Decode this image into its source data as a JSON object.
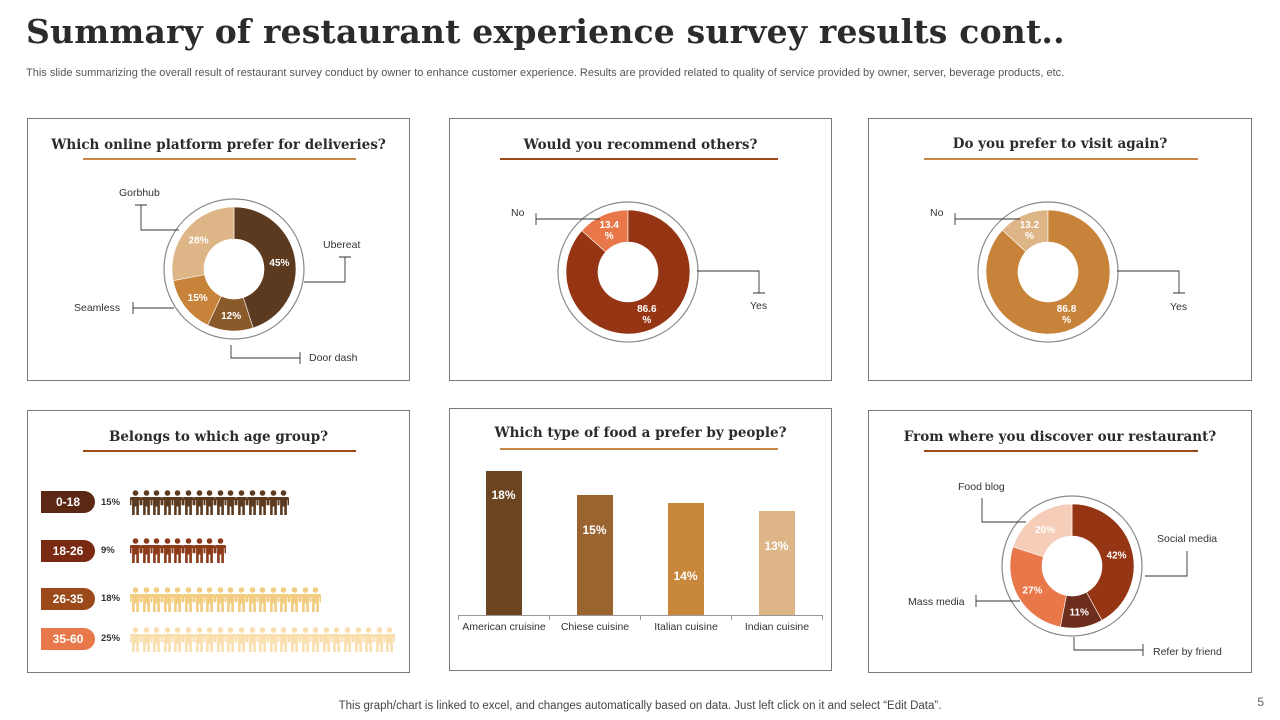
{
  "header": {
    "title": "Summary of restaurant experience survey results cont..",
    "subtitle": "This slide summarizing the overall result of restaurant survey conduct by owner to  enhance customer experience. Results are provided related to  quality of service provided by owner, server, beverage products, etc."
  },
  "footer": {
    "note": "This graph/chart is linked to excel,  and changes automatically based on data. Just left click on it and select “Edit Data”.",
    "page_number": "5"
  },
  "colors": {
    "dark_brown": "#5b3a1f",
    "brown": "#8b5a2b",
    "amber": "#c8833a",
    "tan": "#deb587",
    "rust": "#963514",
    "salmon": "#e8784a",
    "peach": "#f6cdb8"
  },
  "chart_data": [
    {
      "type": "pie",
      "title": "Which online platform prefer for deliveries?",
      "categories": [
        "Ubereat",
        "Door dash",
        "Seamless",
        "Gorbhub"
      ],
      "values": [
        45,
        12,
        15,
        28
      ],
      "value_labels": [
        "45%",
        "12%",
        "15%",
        "28%"
      ],
      "colors": [
        "#5b3a1f",
        "#8b5a2b",
        "#c8833a",
        "#deb587"
      ]
    },
    {
      "type": "pie",
      "title": "Would you recommend others?",
      "categories": [
        "No",
        "Yes"
      ],
      "values": [
        13.4,
        86.6
      ],
      "value_labels": [
        [
          "13.4",
          "%"
        ],
        [
          "86.6",
          "%"
        ]
      ],
      "colors": [
        "#e8784a",
        "#963514"
      ]
    },
    {
      "type": "pie",
      "title": "Do you prefer to visit again?",
      "categories": [
        "No",
        "Yes"
      ],
      "values": [
        13.2,
        86.8
      ],
      "value_labels": [
        [
          "13.2",
          "%"
        ],
        [
          "86.8",
          "%"
        ]
      ],
      "colors": [
        "#deb587",
        "#c8833a"
      ]
    },
    {
      "type": "pictograph",
      "title": "Belongs to which age group?",
      "rows": [
        {
          "group": "0-18",
          "value": 15,
          "label": "15%",
          "icons": 15,
          "color": "#5b3a1f",
          "badge": "#5b2814"
        },
        {
          "group": "18-26",
          "value": 9,
          "label": "9%",
          "icons": 9,
          "color": "#8b3a1a",
          "badge": "#7a2a12"
        },
        {
          "group": "26-35",
          "value": 18,
          "label": "18%",
          "icons": 18,
          "color": "#f2cc80",
          "badge": "#9c4a1a"
        },
        {
          "group": "35-60",
          "value": 25,
          "label": "25%",
          "icons": 25,
          "color": "#f9dfae",
          "badge": "#e8784a"
        }
      ]
    },
    {
      "type": "bar",
      "title": "Which type of food a prefer by people?",
      "categories": [
        "American cruisine",
        "Chiese cuisine",
        "Italian cuisine",
        "Indian cuisine"
      ],
      "values": [
        18,
        15,
        14,
        13
      ],
      "value_labels": [
        "18%",
        "15%",
        "14%",
        "13%"
      ],
      "colors": [
        "#6b4420",
        "#9a6430",
        "#c8873a",
        "#deb587"
      ],
      "ylim": [
        0,
        20
      ]
    },
    {
      "type": "pie",
      "title": "From where you discover our restaurant?",
      "categories": [
        "Social media",
        "Refer by friend",
        "Mass media",
        "Food blog"
      ],
      "values": [
        42,
        11,
        27,
        20
      ],
      "value_labels": [
        "42%",
        "11%",
        "27%",
        "20%"
      ],
      "colors": [
        "#963514",
        "#6e2e1e",
        "#e8784a",
        "#f6cdb8"
      ]
    }
  ]
}
